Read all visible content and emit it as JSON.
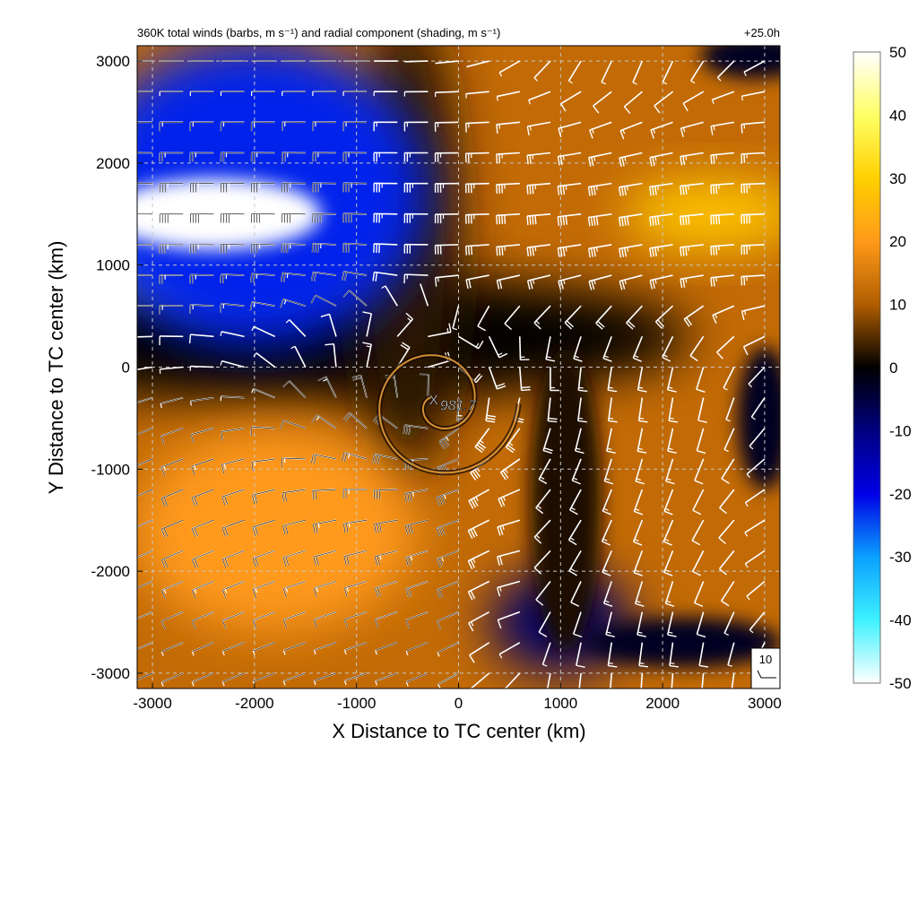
{
  "chart_data": {
    "type": "heatmap",
    "title": "360K total winds (barbs, m s⁻¹) and radial component (shading, m s⁻¹)",
    "time_label": "+25.0h",
    "xlabel": "X Distance to TC center (km)",
    "ylabel": "Y Distance to TC center (km)",
    "xlim": [
      -3150,
      3150
    ],
    "ylim": [
      -3150,
      3150
    ],
    "xticks": [
      -3000,
      -2000,
      -1000,
      0,
      1000,
      2000,
      3000
    ],
    "yticks": [
      -3000,
      -2000,
      -1000,
      0,
      1000,
      2000,
      3000
    ],
    "grid": true,
    "colorbar": {
      "ticks": [
        50,
        40,
        30,
        20,
        10,
        0,
        -10,
        -20,
        -30,
        -40,
        -50
      ],
      "range": [
        -50,
        50
      ],
      "stops": [
        {
          "value": 50,
          "color": "#ffffff"
        },
        {
          "value": 40,
          "color": "#ffff66"
        },
        {
          "value": 30,
          "color": "#ffd000"
        },
        {
          "value": 20,
          "color": "#ff9a1a"
        },
        {
          "value": 10,
          "color": "#b05d00"
        },
        {
          "value": 0,
          "color": "#000000"
        },
        {
          "value": -10,
          "color": "#000080"
        },
        {
          "value": -20,
          "color": "#0000e6"
        },
        {
          "value": -30,
          "color": "#0aa0ff"
        },
        {
          "value": -40,
          "color": "#3ef2ff"
        },
        {
          "value": -50,
          "color": "#ffffff"
        }
      ]
    },
    "center": {
      "x": -200,
      "y": -350,
      "pressure_label": "981.7"
    },
    "regions": [
      {
        "name": "inflow-northwest",
        "x": -2300,
        "y": 1500,
        "rx": 1300,
        "ry": 800,
        "value": -45
      },
      {
        "name": "inflow-northwest-outer",
        "x": -2000,
        "y": 1700,
        "rx": 1700,
        "ry": 1500,
        "value": -22
      },
      {
        "name": "outflow-east-jet",
        "x": 2500,
        "y": 1500,
        "rx": 900,
        "ry": 350,
        "value": 28
      },
      {
        "name": "outflow-southwest",
        "x": -1800,
        "y": -1600,
        "rx": 1400,
        "ry": 1000,
        "value": 20
      },
      {
        "name": "inflow-south",
        "x": 1000,
        "y": -2500,
        "rx": 700,
        "ry": 500,
        "value": -8
      }
    ],
    "wind_key": {
      "label": "10",
      "speed_ms": 10
    }
  }
}
